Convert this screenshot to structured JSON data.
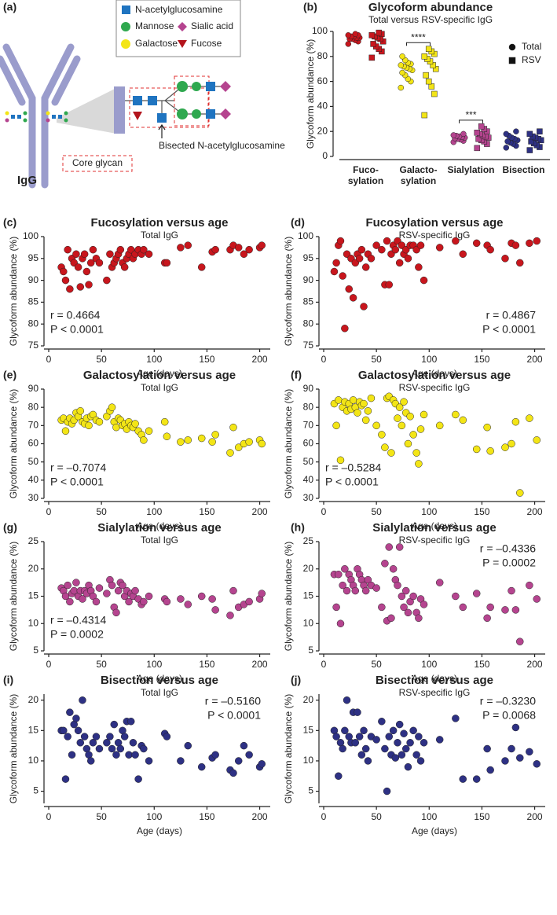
{
  "diagram": {
    "panel_label": "(a)",
    "legend": [
      "N-acetylglucosamine",
      "Mannose",
      "Sialic acid",
      "Galactose",
      "Fucose"
    ],
    "bisected_label": "Bisected N-acetylglucosamine",
    "core_label": "Core glycan",
    "antibody_label": "IgG"
  },
  "chart_data": [
    {
      "type": "strip",
      "panel_label": "(b)",
      "title": "Glycoform abundance",
      "subtitle": "Total versus RSV-specific IgG",
      "ylabel": "Glycoform abundance (%)",
      "categories": [
        "Fuco-\nsylation",
        "Galacto-\nsylation",
        "Sialylation",
        "Bisection"
      ],
      "category_colors": [
        "#c8161d",
        "#f3e516",
        "#b5448f",
        "#2e3184"
      ],
      "ylim": [
        0,
        100
      ],
      "yticks": [
        0,
        20,
        40,
        60,
        80,
        100
      ],
      "legend": "top-right",
      "series": [
        {
          "name": "Total",
          "marker": "circle",
          "values": [
            [
              90,
              92,
              93,
              94,
              94,
              95,
              95,
              96,
              96,
              97,
              97,
              98
            ],
            [
              55,
              60,
              62,
              65,
              67,
              69,
              70,
              71,
              72,
              73,
              74,
              75,
              77,
              80
            ],
            [
              11.5,
              12.5,
              13.5,
              14,
              14.5,
              15,
              15.5,
              16,
              16.5,
              17,
              18
            ],
            [
              7,
              8.5,
              10,
              11,
              12,
              13,
              14,
              15,
              16.5,
              18,
              20
            ]
          ]
        },
        {
          "name": "RSV",
          "marker": "square",
          "values": [
            [
              79,
              84,
              86,
              88,
              90,
              92,
              94,
              95,
              96,
              97,
              98,
              99
            ],
            [
              33,
              50,
              56,
              60,
              65,
              70,
              73,
              76,
              78,
              80,
              82,
              84,
              86
            ],
            [
              6.7,
              10,
              12,
              13,
              14,
              15,
              16,
              17,
              18,
              19,
              20,
              22,
              24
            ],
            [
              5,
              7.5,
              9,
              10.5,
              12,
              13,
              14,
              15,
              16,
              18,
              20
            ]
          ]
        }
      ],
      "significance": [
        {
          "category": "Galacto-\nsylation",
          "text": "****"
        },
        {
          "category": "Sialylation",
          "text": "***"
        }
      ]
    },
    {
      "type": "scatter",
      "panel_label": "(c)",
      "title": "Fucosylation versus age",
      "subtitle": "Total IgG",
      "xlabel": "Age (days)",
      "ylabel": "Glycoform abundance (%)",
      "color": "#c8161d",
      "x": [
        12,
        14,
        16,
        18,
        20,
        22,
        24,
        26,
        28,
        30,
        32,
        34,
        36,
        38,
        40,
        42,
        45,
        48,
        55,
        58,
        60,
        62,
        64,
        66,
        68,
        70,
        72,
        74,
        76,
        78,
        80,
        82,
        85,
        88,
        90,
        95,
        110,
        112,
        125,
        132,
        145,
        155,
        158,
        172,
        175,
        180,
        185,
        190,
        200,
        202
      ],
      "values": [
        93,
        92,
        90,
        97,
        88,
        95,
        94,
        96,
        93,
        88.5,
        95,
        96,
        92,
        89,
        94,
        97,
        95,
        94,
        90,
        96,
        93,
        94,
        95,
        96,
        97,
        94,
        93,
        95,
        96,
        97,
        95,
        96,
        97,
        96,
        97,
        96,
        94,
        94,
        97.5,
        98,
        93,
        96.5,
        97,
        97,
        98,
        97.5,
        96,
        97,
        97.5,
        98
      ],
      "xlim": [
        0,
        210
      ],
      "xticks": [
        0,
        50,
        100,
        150,
        200
      ],
      "ylim": [
        75,
        100
      ],
      "yticks": [
        75,
        80,
        85,
        90,
        95,
        100
      ],
      "annotations": [
        "r = 0.4664",
        "P < 0.0001"
      ],
      "annotation_position": "bottom-left"
    },
    {
      "type": "scatter",
      "panel_label": "(d)",
      "title": "Fucosylation versus age",
      "subtitle": "RSV-specific IgG",
      "xlabel": "Age (days)",
      "ylabel": "Glycoform abundance (%)",
      "color": "#c8161d",
      "x": [
        10,
        12,
        14,
        16,
        18,
        20,
        22,
        24,
        26,
        28,
        30,
        32,
        34,
        36,
        38,
        40,
        42,
        45,
        50,
        55,
        58,
        60,
        62,
        64,
        66,
        68,
        70,
        72,
        74,
        76,
        78,
        80,
        82,
        85,
        88,
        90,
        92,
        95,
        110,
        125,
        132,
        145,
        155,
        158,
        172,
        178,
        182,
        186,
        195,
        202
      ],
      "values": [
        92,
        94,
        98,
        99,
        91,
        79,
        96,
        88,
        95,
        86,
        94,
        96,
        95,
        97,
        84,
        93,
        96,
        95,
        98,
        97,
        89,
        99,
        89,
        96,
        98,
        97,
        99,
        94,
        98,
        96,
        97,
        95,
        98,
        98,
        97,
        93,
        98,
        90,
        97.5,
        99,
        96,
        98.5,
        98,
        97,
        95,
        98.5,
        98,
        94,
        98.5,
        99
      ],
      "xlim": [
        0,
        210
      ],
      "xticks": [
        0,
        50,
        100,
        150,
        200
      ],
      "ylim": [
        75,
        100
      ],
      "yticks": [
        75,
        80,
        85,
        90,
        95,
        100
      ],
      "annotations": [
        "r = 0.4867",
        "P < 0.0001"
      ],
      "annotation_position": "bottom-right"
    },
    {
      "type": "scatter",
      "panel_label": "(e)",
      "title": "Galactosylation versus age",
      "subtitle": "Total IgG",
      "xlabel": "Age (days)",
      "ylabel": "Glycoform abundance (%)",
      "color": "#f3e516",
      "x": [
        12,
        14,
        16,
        18,
        20,
        22,
        24,
        26,
        28,
        30,
        32,
        34,
        36,
        38,
        40,
        42,
        45,
        48,
        55,
        58,
        60,
        62,
        64,
        66,
        68,
        70,
        72,
        74,
        76,
        78,
        80,
        82,
        85,
        88,
        90,
        95,
        110,
        112,
        125,
        132,
        145,
        155,
        158,
        172,
        175,
        180,
        185,
        190,
        200,
        202
      ],
      "values": [
        73,
        74,
        67,
        72,
        74,
        71,
        73,
        77,
        75,
        78,
        72,
        71,
        74,
        70,
        75,
        76,
        73,
        72,
        75,
        78,
        80,
        72,
        69,
        74,
        73,
        70,
        71,
        68,
        72,
        70,
        69,
        71,
        67,
        65,
        62,
        67,
        72,
        64,
        61,
        62,
        63,
        61,
        65,
        55,
        69,
        58,
        60,
        61,
        62,
        60
      ],
      "xlim": [
        0,
        210
      ],
      "xticks": [
        0,
        50,
        100,
        150,
        200
      ],
      "ylim": [
        30,
        90
      ],
      "yticks": [
        30,
        40,
        50,
        60,
        70,
        80,
        90
      ],
      "annotations": [
        "r = –0.7074",
        "P < 0.0001"
      ],
      "annotation_position": "bottom-left"
    },
    {
      "type": "scatter",
      "panel_label": "(f)",
      "title": "Galactosylation versus age",
      "subtitle": "RSV-specific IgG",
      "xlabel": "Age (days)",
      "ylabel": "Glycoform abundance (%)",
      "color": "#f3e516",
      "x": [
        10,
        12,
        14,
        16,
        18,
        20,
        22,
        24,
        26,
        28,
        30,
        32,
        34,
        36,
        38,
        40,
        42,
        45,
        50,
        55,
        58,
        60,
        62,
        64,
        66,
        68,
        70,
        72,
        74,
        76,
        78,
        80,
        82,
        85,
        88,
        90,
        92,
        95,
        110,
        125,
        132,
        145,
        155,
        158,
        172,
        178,
        182,
        186,
        195,
        202
      ],
      "values": [
        82,
        70,
        84,
        51,
        80,
        83,
        78,
        82,
        79,
        84,
        80,
        77,
        83,
        81,
        82,
        73,
        78,
        85,
        70,
        65,
        58,
        85,
        86,
        55,
        84,
        82,
        74,
        80,
        70,
        83,
        77,
        60,
        75,
        65,
        55,
        49,
        68,
        76,
        70,
        76,
        73,
        57,
        69,
        56,
        58,
        60,
        72,
        33,
        74,
        62
      ],
      "xlim": [
        0,
        210
      ],
      "xticks": [
        0,
        50,
        100,
        150,
        200
      ],
      "ylim": [
        30,
        90
      ],
      "yticks": [
        30,
        40,
        50,
        60,
        70,
        80,
        90
      ],
      "annotations": [
        "r = –0.5284",
        "P < 0.0001"
      ],
      "annotation_position": "bottom-left"
    },
    {
      "type": "scatter",
      "panel_label": "(g)",
      "title": "Sialylation versus age",
      "subtitle": "Total IgG",
      "xlabel": "Age (days)",
      "ylabel": "Glycoform abundance (%)",
      "color": "#b5448f",
      "x": [
        12,
        14,
        16,
        18,
        20,
        22,
        24,
        26,
        28,
        30,
        32,
        34,
        36,
        38,
        40,
        42,
        45,
        48,
        55,
        58,
        60,
        62,
        64,
        66,
        68,
        70,
        72,
        74,
        76,
        78,
        80,
        82,
        85,
        88,
        90,
        95,
        110,
        112,
        125,
        132,
        145,
        155,
        158,
        172,
        175,
        180,
        185,
        190,
        200,
        202
      ],
      "values": [
        16.5,
        16,
        15,
        17,
        14,
        15.5,
        16,
        17.5,
        15,
        16,
        14.5,
        16,
        15.5,
        17,
        16,
        15,
        14,
        16.5,
        15.5,
        18,
        17,
        13,
        12,
        16,
        17.5,
        17,
        15,
        16,
        14,
        15.5,
        15,
        16,
        14.5,
        13.5,
        14,
        15,
        14.5,
        14,
        14.5,
        13.5,
        15,
        14.5,
        12.5,
        11.5,
        16,
        13,
        13.5,
        14,
        14.5,
        15.5
      ],
      "xlim": [
        0,
        210
      ],
      "xticks": [
        0,
        50,
        100,
        150,
        200
      ],
      "ylim": [
        5,
        25
      ],
      "yticks": [
        5,
        10,
        15,
        20,
        25
      ],
      "annotations": [
        "r = –0.4314",
        "P = 0.0002"
      ],
      "annotation_position": "bottom-left"
    },
    {
      "type": "scatter",
      "panel_label": "(h)",
      "title": "Sialylation versus age",
      "subtitle": "RSV-specific IgG",
      "xlabel": "Age (days)",
      "ylabel": "Glycoform abundance (%)",
      "color": "#b5448f",
      "x": [
        10,
        12,
        14,
        16,
        18,
        20,
        22,
        24,
        26,
        28,
        30,
        32,
        34,
        36,
        38,
        40,
        42,
        45,
        50,
        55,
        58,
        60,
        62,
        64,
        66,
        68,
        70,
        72,
        74,
        76,
        78,
        80,
        82,
        85,
        88,
        90,
        92,
        95,
        110,
        125,
        132,
        145,
        155,
        158,
        172,
        178,
        182,
        186,
        195,
        202
      ],
      "values": [
        19,
        13,
        19,
        10,
        17,
        20,
        16,
        19,
        18,
        17,
        16,
        20,
        19,
        18,
        17,
        16,
        18,
        17,
        16.5,
        13,
        21,
        10.5,
        24,
        11,
        20,
        18,
        17,
        24,
        15,
        13,
        16,
        12,
        14,
        15,
        12,
        11,
        14.5,
        13.5,
        17.5,
        15,
        13,
        15.5,
        11,
        13,
        12.5,
        16,
        12.5,
        6.7,
        17,
        14.5
      ],
      "xlim": [
        0,
        210
      ],
      "xticks": [
        0,
        50,
        100,
        150,
        200
      ],
      "ylim": [
        5,
        25
      ],
      "yticks": [
        5,
        10,
        15,
        20,
        25
      ],
      "annotations": [
        "r = –0.4336",
        "P = 0.0002"
      ],
      "annotation_position": "top-right"
    },
    {
      "type": "scatter",
      "panel_label": "(i)",
      "title": "Bisection versus age",
      "subtitle": "Total IgG",
      "xlabel": "Age (days)",
      "ylabel": "Glycoform abundance (%)",
      "color": "#2e3184",
      "x": [
        12,
        14,
        16,
        18,
        20,
        22,
        24,
        26,
        28,
        30,
        32,
        34,
        36,
        38,
        40,
        42,
        45,
        48,
        55,
        58,
        60,
        62,
        64,
        66,
        68,
        70,
        72,
        74,
        76,
        78,
        80,
        82,
        85,
        88,
        90,
        95,
        110,
        112,
        125,
        132,
        145,
        155,
        158,
        172,
        175,
        180,
        185,
        190,
        200,
        202
      ],
      "values": [
        15,
        15,
        7,
        14,
        18,
        11,
        16,
        17,
        15,
        13,
        20,
        14,
        12,
        11,
        10,
        13,
        14,
        12,
        13,
        14,
        12,
        16,
        11,
        13,
        12,
        15,
        14,
        16.5,
        11,
        16.5,
        13,
        11,
        7,
        12.5,
        12,
        10,
        14.5,
        14,
        10,
        12.5,
        9,
        10.5,
        11,
        8.5,
        8,
        10,
        12.5,
        11,
        9,
        9.5
      ],
      "xlim": [
        0,
        210
      ],
      "xticks": [
        0,
        50,
        100,
        150,
        200
      ],
      "ylim": [
        3,
        21
      ],
      "yticks": [
        5,
        10,
        15,
        20
      ],
      "annotations": [
        "r = –0.5160",
        "P < 0.0001"
      ],
      "annotation_position": "top-right"
    },
    {
      "type": "scatter",
      "panel_label": "(j)",
      "title": "Bisection versus age",
      "subtitle": "RSV-specific IgG",
      "xlabel": "Age (days)",
      "ylabel": "Glycoform abundance (%)",
      "color": "#2e3184",
      "x": [
        10,
        12,
        14,
        16,
        18,
        20,
        22,
        24,
        26,
        28,
        30,
        32,
        34,
        36,
        38,
        40,
        42,
        45,
        50,
        55,
        58,
        60,
        62,
        64,
        66,
        68,
        70,
        72,
        74,
        76,
        78,
        80,
        82,
        85,
        88,
        90,
        92,
        95,
        110,
        125,
        132,
        145,
        155,
        158,
        172,
        178,
        182,
        186,
        195,
        202
      ],
      "values": [
        15,
        14,
        7.5,
        13,
        12,
        15,
        20,
        14,
        13,
        18,
        13,
        18,
        14,
        11,
        15,
        12,
        10,
        14,
        13.5,
        16.5,
        12,
        5,
        14,
        11,
        15,
        10.5,
        13,
        16,
        11,
        14.5,
        12,
        9,
        13,
        15,
        11,
        14,
        10,
        13,
        13.5,
        17,
        7,
        7,
        12,
        8.5,
        10,
        12,
        15.5,
        10.5,
        11.5,
        9.5
      ],
      "xlim": [
        0,
        210
      ],
      "xticks": [
        0,
        50,
        100,
        150,
        200
      ],
      "ylim": [
        3,
        21
      ],
      "yticks": [
        5,
        10,
        15,
        20
      ],
      "annotations": [
        "r = –0.3230",
        "P = 0.0068"
      ],
      "annotation_position": "top-right"
    }
  ]
}
